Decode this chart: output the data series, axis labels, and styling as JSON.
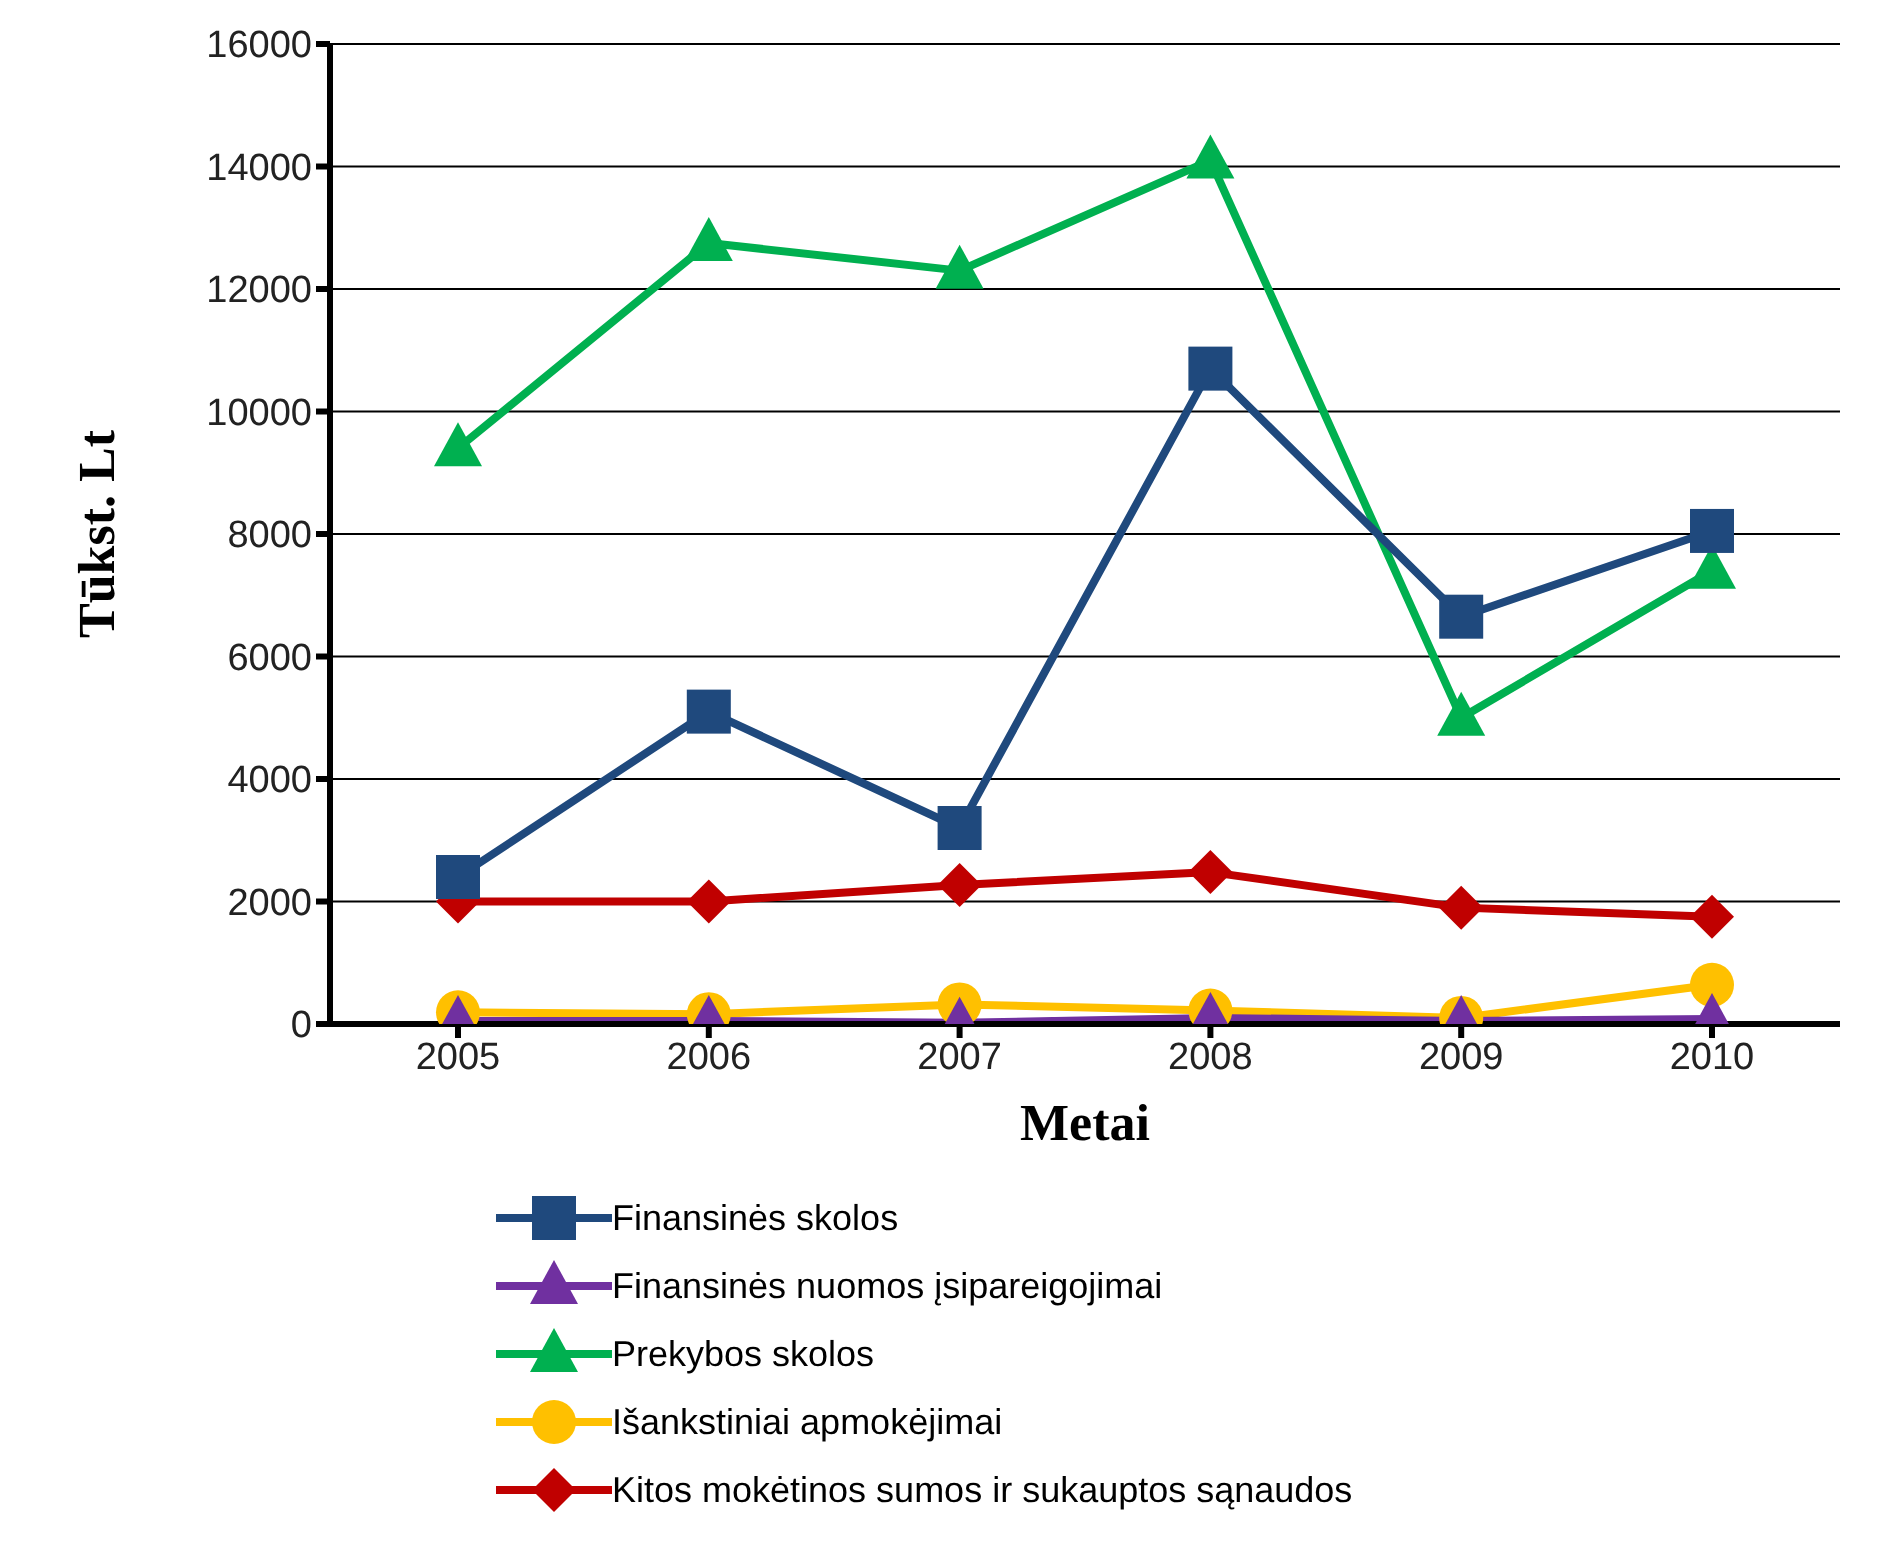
{
  "chart_data": {
    "type": "line",
    "xlabel": "Metai",
    "ylabel": "Tūkst. Lt",
    "categories": [
      "2005",
      "2006",
      "2007",
      "2008",
      "2009",
      "2010"
    ],
    "series": [
      {
        "name": "Finansinės skolos",
        "color": "#1f497d",
        "marker": "square",
        "values": [
          2400,
          5100,
          3200,
          10700,
          6650,
          8050
        ]
      },
      {
        "name": "Finansinės nuomos įsipareigojimai",
        "color": "#7030a0",
        "marker": "triangle",
        "values": [
          50,
          50,
          20,
          100,
          50,
          80
        ]
      },
      {
        "name": "Prekybos skolos",
        "color": "#00b050",
        "marker": "triangle",
        "values": [
          9400,
          12750,
          12300,
          14100,
          5000,
          7400
        ]
      },
      {
        "name": "Išankstiniai apmokėjimai",
        "color": "#ffc000",
        "marker": "circle",
        "values": [
          190,
          160,
          320,
          220,
          100,
          640
        ]
      },
      {
        "name": "Kitos mokėtinos sumos ir sukauptos sąnaudos",
        "color": "#c00000",
        "marker": "diamond",
        "values": [
          2000,
          2000,
          2270,
          2480,
          1900,
          1750
        ]
      }
    ],
    "ylim": [
      0,
      16000
    ],
    "yticks": [
      0,
      2000,
      4000,
      6000,
      8000,
      10000,
      12000,
      14000,
      16000
    ],
    "grid": "y",
    "legend": "bottom"
  }
}
